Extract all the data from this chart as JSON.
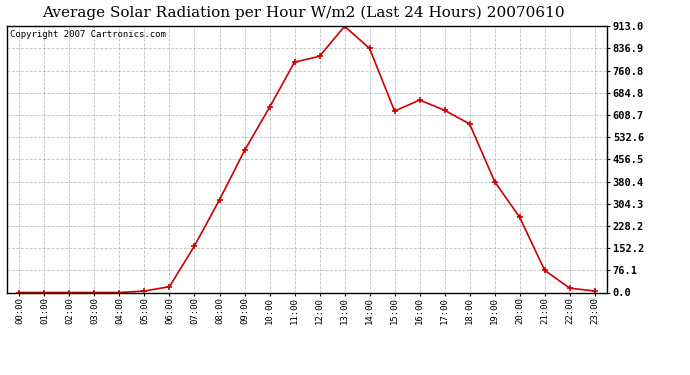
{
  "title": "Average Solar Radiation per Hour W/m2 (Last 24 Hours) 20070610",
  "copyright_text": "Copyright 2007 Cartronics.com",
  "hours": [
    "00:00",
    "01:00",
    "02:00",
    "03:00",
    "04:00",
    "05:00",
    "06:00",
    "07:00",
    "08:00",
    "09:00",
    "10:00",
    "11:00",
    "12:00",
    "13:00",
    "14:00",
    "15:00",
    "16:00",
    "17:00",
    "18:00",
    "19:00",
    "20:00",
    "21:00",
    "22:00",
    "23:00"
  ],
  "values": [
    0.0,
    0.0,
    0.0,
    0.0,
    0.0,
    5.0,
    20.0,
    160.0,
    318.0,
    487.0,
    635.0,
    790.0,
    810.0,
    913.0,
    836.9,
    622.0,
    660.0,
    625.0,
    578.0,
    380.4,
    258.0,
    76.1,
    15.0,
    5.0
  ],
  "yticks": [
    0.0,
    76.1,
    152.2,
    228.2,
    304.3,
    380.4,
    456.5,
    532.6,
    608.7,
    684.8,
    760.8,
    836.9,
    913.0
  ],
  "ymax": 913.0,
  "line_color": "#cc0000",
  "marker_color": "#cc0000",
  "bg_color": "#ffffff",
  "plot_bg_color": "#ffffff",
  "grid_color": "#b0b0b0",
  "title_fontsize": 11,
  "copyright_fontsize": 6.5
}
